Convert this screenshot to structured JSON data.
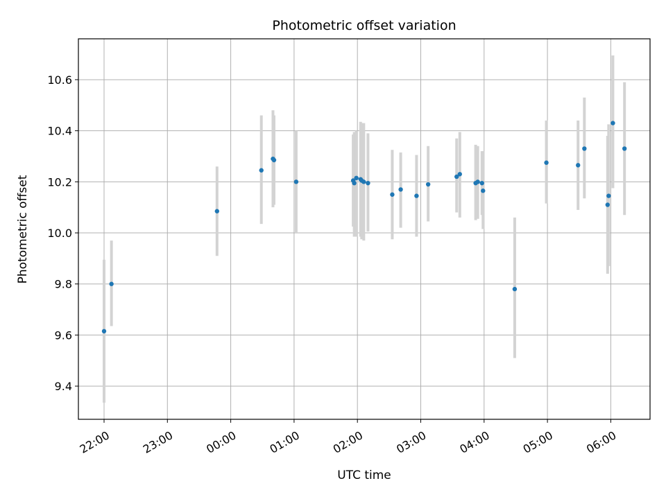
{
  "chart_data": {
    "type": "scatter",
    "title": "Photometric offset variation",
    "xlabel": "UTC time",
    "ylabel": "Photometric offset",
    "grid": true,
    "x_axis": {
      "type": "time",
      "ticks": [
        "22:00",
        "23:00",
        "00:00",
        "01:00",
        "02:00",
        "03:00",
        "04:00",
        "05:00",
        "06:00"
      ]
    },
    "y_axis": {
      "ticks": [
        "9.4",
        "9.6",
        "9.8",
        "10.0",
        "10.2",
        "10.4",
        "10.6"
      ],
      "ylim": [
        9.27,
        10.76
      ]
    },
    "colors": {
      "points": "#1f77b4",
      "errorbars": "#d3d3d3",
      "grid": "#b0b0b0"
    },
    "points": [
      {
        "t": "22:00",
        "y": 9.615,
        "lo": 9.335,
        "hi": 9.895
      },
      {
        "t": "22:07",
        "y": 9.8,
        "lo": 9.635,
        "hi": 9.97
      },
      {
        "t": "23:47",
        "y": 10.085,
        "lo": 9.91,
        "hi": 10.26
      },
      {
        "t": "00:29",
        "y": 10.245,
        "lo": 10.035,
        "hi": 10.46
      },
      {
        "t": "00:40",
        "y": 10.29,
        "lo": 10.1,
        "hi": 10.48
      },
      {
        "t": "00:41",
        "y": 10.285,
        "lo": 10.11,
        "hi": 10.46
      },
      {
        "t": "01:02",
        "y": 10.2,
        "lo": 10.0,
        "hi": 10.4
      },
      {
        "t": "01:56",
        "y": 10.205,
        "lo": 10.025,
        "hi": 10.385
      },
      {
        "t": "01:57",
        "y": 10.195,
        "lo": 9.985,
        "hi": 10.395
      },
      {
        "t": "01:59",
        "y": 10.215,
        "lo": 9.985,
        "hi": 10.4
      },
      {
        "t": "02:03",
        "y": 10.21,
        "lo": 9.985,
        "hi": 10.435
      },
      {
        "t": "02:04",
        "y": 10.205,
        "lo": 9.975,
        "hi": 10.43
      },
      {
        "t": "02:06",
        "y": 10.2,
        "lo": 9.97,
        "hi": 10.43
      },
      {
        "t": "02:10",
        "y": 10.195,
        "lo": 10.005,
        "hi": 10.39
      },
      {
        "t": "02:33",
        "y": 10.15,
        "lo": 9.975,
        "hi": 10.325
      },
      {
        "t": "02:41",
        "y": 10.17,
        "lo": 10.02,
        "hi": 10.315
      },
      {
        "t": "02:56",
        "y": 10.145,
        "lo": 9.985,
        "hi": 10.305
      },
      {
        "t": "03:07",
        "y": 10.19,
        "lo": 10.045,
        "hi": 10.34
      },
      {
        "t": "03:34",
        "y": 10.22,
        "lo": 10.08,
        "hi": 10.37
      },
      {
        "t": "03:37",
        "y": 10.23,
        "lo": 10.06,
        "hi": 10.395
      },
      {
        "t": "03:52",
        "y": 10.195,
        "lo": 10.05,
        "hi": 10.345
      },
      {
        "t": "03:54",
        "y": 10.2,
        "lo": 10.055,
        "hi": 10.34
      },
      {
        "t": "03:58",
        "y": 10.195,
        "lo": 10.07,
        "hi": 10.32
      },
      {
        "t": "03:59",
        "y": 10.165,
        "lo": 10.015,
        "hi": 10.32
      },
      {
        "t": "04:29",
        "y": 9.78,
        "lo": 9.51,
        "hi": 10.06
      },
      {
        "t": "04:59",
        "y": 10.275,
        "lo": 10.115,
        "hi": 10.44
      },
      {
        "t": "05:29",
        "y": 10.265,
        "lo": 10.09,
        "hi": 10.44
      },
      {
        "t": "05:35",
        "y": 10.33,
        "lo": 10.135,
        "hi": 10.53
      },
      {
        "t": "05:57",
        "y": 10.11,
        "lo": 9.84,
        "hi": 10.38
      },
      {
        "t": "05:58",
        "y": 10.145,
        "lo": 9.87,
        "hi": 10.425
      },
      {
        "t": "06:02",
        "y": 10.43,
        "lo": 10.175,
        "hi": 10.695
      },
      {
        "t": "06:13",
        "y": 10.33,
        "lo": 10.07,
        "hi": 10.59
      }
    ]
  }
}
